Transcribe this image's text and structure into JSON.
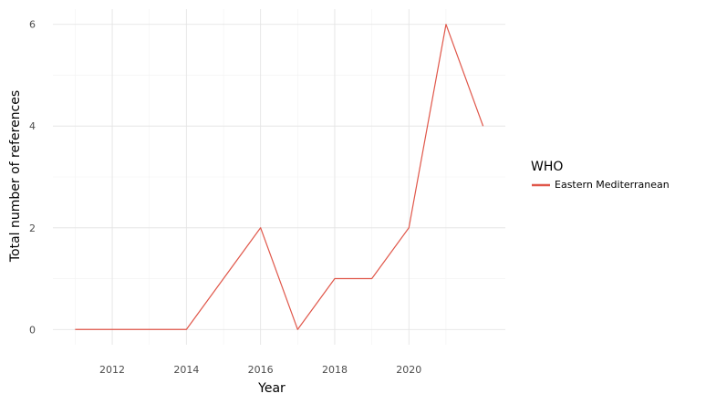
{
  "chart_data": {
    "type": "line",
    "xlabel": "Year",
    "ylabel": "Total number of references",
    "xlim": [
      2010.4,
      2022.6
    ],
    "ylim": [
      -0.3,
      6.3
    ],
    "x_ticks": [
      2012,
      2014,
      2016,
      2018,
      2020
    ],
    "y_ticks": [
      0,
      2,
      4,
      6
    ],
    "grid": true,
    "legend": {
      "title": "WHO",
      "placement": "right"
    },
    "series": [
      {
        "name": "Eastern Mediterranean",
        "color": "#e0574a",
        "x": [
          2011,
          2012,
          2013,
          2014,
          2015,
          2016,
          2017,
          2018,
          2019,
          2020,
          2021,
          2022
        ],
        "y": [
          0,
          0,
          0,
          0,
          1,
          2,
          0,
          1,
          1,
          2,
          6,
          4
        ]
      }
    ]
  }
}
